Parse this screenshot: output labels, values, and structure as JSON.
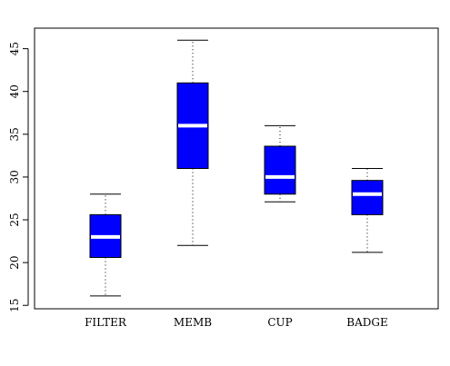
{
  "chart_data": {
    "type": "box",
    "categories": [
      "FILTER",
      "MEMB",
      "CUP",
      "BADGE"
    ],
    "boxes": [
      {
        "name": "FILTER",
        "whisker_low": 16.1,
        "q1": 20.6,
        "median": 23.0,
        "q3": 25.6,
        "whisker_high": 28.0
      },
      {
        "name": "MEMB",
        "whisker_low": 22.0,
        "q1": 31.0,
        "median": 36.0,
        "q3": 41.0,
        "whisker_high": 46.0
      },
      {
        "name": "CUP",
        "whisker_low": 27.1,
        "q1": 28.0,
        "median": 30.0,
        "q3": 33.6,
        "whisker_high": 36.0
      },
      {
        "name": "BADGE",
        "whisker_low": 21.2,
        "q1": 25.6,
        "median": 28.0,
        "q3": 29.6,
        "whisker_high": 31.0
      }
    ],
    "ylim": [
      14.6,
      47.4
    ],
    "yticks": [
      15,
      20,
      25,
      30,
      35,
      40,
      45
    ],
    "title": "",
    "xlabel": "",
    "ylabel": "",
    "box_color": "#0000ff",
    "median_color": "#ffffff",
    "grid": false
  }
}
